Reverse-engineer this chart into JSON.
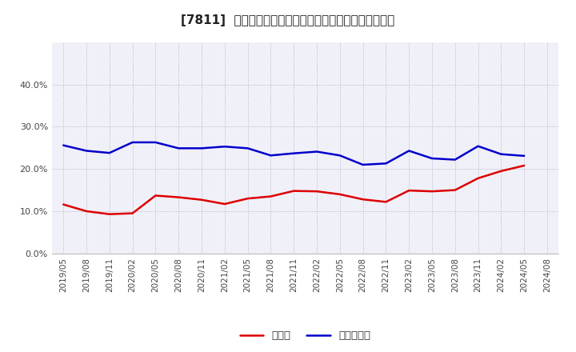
{
  "title": "[7811]  現預金、有利子負債の総資産に対する比率の推移",
  "title_fontsize": 11,
  "background_color": "#ffffff",
  "plot_bg_color": "#f0f0f8",
  "grid_color": "#aaaacc",
  "ylim": [
    0.0,
    0.5
  ],
  "yticks": [
    0.0,
    0.1,
    0.2,
    0.3,
    0.4
  ],
  "x_labels": [
    "2019/05",
    "2019/08",
    "2019/11",
    "2020/02",
    "2020/05",
    "2020/08",
    "2020/11",
    "2021/02",
    "2021/05",
    "2021/08",
    "2021/11",
    "2022/02",
    "2022/05",
    "2022/08",
    "2022/11",
    "2023/02",
    "2023/05",
    "2023/08",
    "2023/11",
    "2024/02",
    "2024/05",
    "2024/08"
  ],
  "cash_values": [
    0.116,
    0.1,
    0.093,
    0.095,
    0.137,
    0.133,
    0.127,
    0.117,
    0.13,
    0.135,
    0.148,
    0.147,
    0.14,
    0.128,
    0.122,
    0.149,
    0.147,
    0.15,
    0.178,
    0.195,
    0.208,
    null
  ],
  "debt_values": [
    0.256,
    0.243,
    0.238,
    0.263,
    0.263,
    0.249,
    0.249,
    0.253,
    0.249,
    0.232,
    0.237,
    0.241,
    0.232,
    0.21,
    0.213,
    0.243,
    0.225,
    0.222,
    0.254,
    0.235,
    0.231,
    null
  ],
  "cash_color": "#dd0000",
  "debt_color": "#0000cc",
  "line_width": 1.8,
  "legend_cash": "現預金",
  "legend_debt": "有利子負債"
}
